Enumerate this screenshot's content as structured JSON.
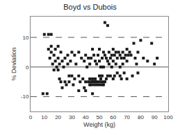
{
  "chart_data": {
    "type": "scatter",
    "title": "Boyd vs Dubois",
    "xlabel": "Weight (kg)",
    "ylabel": "% Deviation",
    "xlim": [
      0,
      100
    ],
    "ylim": [
      -15,
      17
    ],
    "xticks": [
      0,
      10,
      20,
      30,
      40,
      50,
      60,
      70,
      80,
      90,
      100
    ],
    "yticks": [
      -10,
      0,
      10
    ],
    "grid": false,
    "color": "#1a1a1a",
    "marker": "square",
    "hlines": [
      {
        "y": 0,
        "line_style": "solid"
      },
      {
        "y": 10,
        "line_style": "dashed"
      },
      {
        "y": -10,
        "line_style": "dashed"
      }
    ],
    "x": [
      10,
      13,
      12,
      15,
      13,
      14,
      15,
      15,
      16,
      17,
      17,
      18,
      18,
      19,
      20,
      20,
      20,
      21,
      21,
      22,
      22,
      23,
      23,
      24,
      25,
      25,
      26,
      27,
      27,
      28,
      28,
      29,
      30,
      30,
      31,
      32,
      32,
      33,
      35,
      35,
      36,
      37,
      38,
      39,
      39,
      40,
      40,
      41,
      42,
      42,
      43,
      43,
      44,
      44,
      45,
      45,
      46,
      46,
      47,
      47,
      48,
      48,
      49,
      50,
      50,
      50,
      51,
      51,
      52,
      52,
      53,
      53,
      53,
      54,
      54,
      54,
      55,
      55,
      56,
      56,
      56,
      57,
      57,
      58,
      58,
      59,
      59,
      60,
      60,
      60,
      61,
      61,
      62,
      62,
      63,
      63,
      64,
      65,
      65,
      65,
      66,
      66,
      67,
      67,
      68,
      68,
      69,
      70,
      70,
      70,
      71,
      72,
      73,
      74,
      75,
      76,
      77,
      78,
      78,
      80,
      82,
      85,
      88,
      90,
      92,
      43,
      44,
      45,
      46,
      47,
      48,
      49,
      50,
      51,
      52,
      53,
      35,
      40,
      45,
      9
    ],
    "values": [
      11,
      11,
      -9,
      11,
      6,
      3,
      5,
      7,
      1,
      4,
      -1,
      6,
      2,
      0,
      3,
      -1,
      7,
      -4,
      1,
      5,
      -5,
      -7,
      2,
      0,
      -5,
      3,
      -6,
      4,
      1,
      -3,
      -5,
      2,
      5,
      -3,
      -6,
      4,
      -4,
      1,
      5,
      -3,
      -5,
      3,
      -4,
      2,
      -7,
      4,
      -5,
      0,
      3,
      -5,
      1,
      -6,
      3,
      -5,
      6,
      -4,
      4,
      -5,
      2,
      -4,
      1,
      -5,
      4,
      6,
      2,
      -3,
      0,
      -4,
      3,
      -3,
      5,
      0,
      -6,
      15,
      4,
      -5,
      3,
      -4,
      14,
      2,
      -3,
      5,
      1,
      3,
      -3,
      4,
      0,
      6,
      2,
      -4,
      4,
      -3,
      5,
      1,
      3,
      -2,
      5,
      4,
      0,
      -3,
      3,
      -4,
      5,
      1,
      3,
      -2,
      4,
      6,
      2,
      -4,
      4,
      5,
      4,
      -3,
      8,
      3,
      1,
      5,
      -2,
      9,
      3,
      2,
      8,
      1,
      3,
      -4,
      -6,
      -5,
      -6,
      -5,
      -6,
      -5,
      -6,
      -5,
      -6,
      -5,
      -8,
      -8,
      -9,
      -9
    ]
  }
}
